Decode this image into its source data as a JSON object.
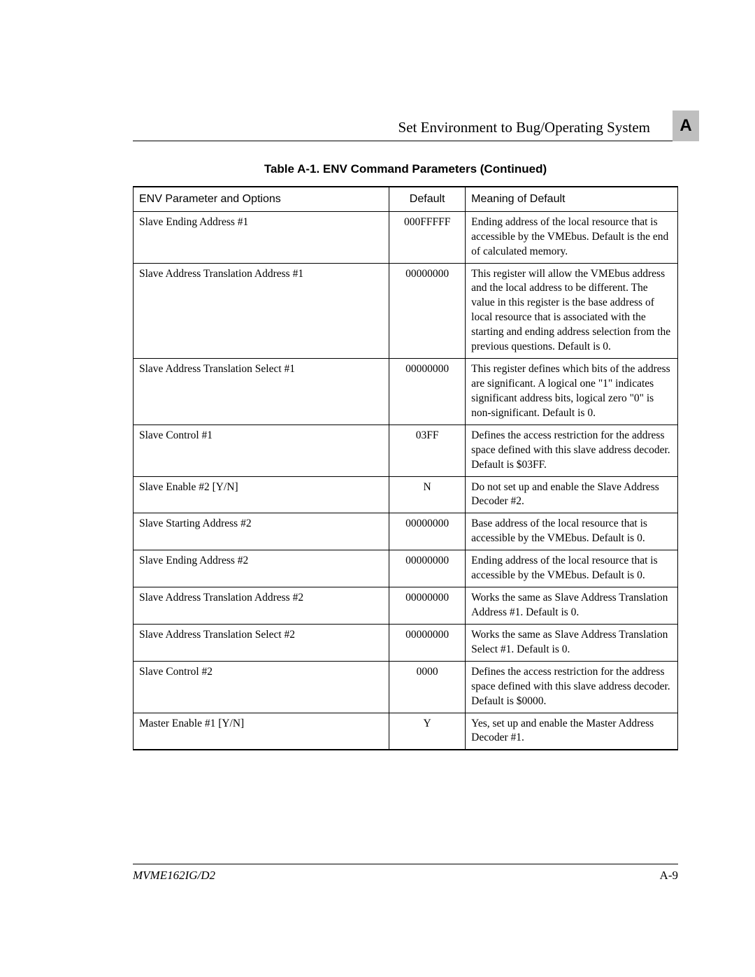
{
  "header": {
    "section_title": "Set Environment to Bug/Operating System",
    "appendix_letter": "A"
  },
  "table": {
    "caption": "Table A-1.  ENV Command Parameters (Continued)",
    "columns": {
      "param": "ENV Parameter and Options",
      "default": "Default",
      "meaning": "Meaning of Default"
    },
    "rows": [
      {
        "param": "Slave Ending Address #1",
        "default": "000FFFFF",
        "meaning": "Ending address of the local resource that is accessible by the VMEbus. Default is the end of calculated memory."
      },
      {
        "param": "Slave Address Translation Address #1",
        "default": "00000000",
        "meaning": "This register will allow the VMEbus address and the local address to be different. The value in this register is the base address of local resource that is associated with the starting and ending address selection from the previous questions. Default is 0."
      },
      {
        "param": "Slave Address Translation Select #1",
        "default": "00000000",
        "meaning": "This register defines which bits of the address are significant. A logical one \"1\" indicates significant address bits, logical zero \"0\" is non-significant. Default is 0."
      },
      {
        "param": "Slave Control #1",
        "default": "03FF",
        "meaning": "Defines the access restriction for the address space defined with this slave address decoder. Default is $03FF."
      },
      {
        "param": "Slave Enable #2 [Y/N]",
        "default": "N",
        "meaning": "Do not set up and enable the Slave Address Decoder #2."
      },
      {
        "param": "Slave Starting Address #2",
        "default": "00000000",
        "meaning": "Base address of the local resource that is accessible by the VMEbus. Default is 0."
      },
      {
        "param": "Slave Ending Address #2",
        "default": "00000000",
        "meaning": "Ending address of the local resource that is accessible by the VMEbus. Default is 0."
      },
      {
        "param": "Slave Address Translation Address #2",
        "default": "00000000",
        "meaning": "Works the same as Slave Address Translation Address #1. Default is 0."
      },
      {
        "param": "Slave Address Translation Select #2",
        "default": "00000000",
        "meaning": "Works the same as Slave Address Translation Select #1. Default is 0."
      },
      {
        "param": "Slave Control #2",
        "default": "0000",
        "meaning": "Defines the access restriction for the address space defined with this slave address decoder. Default is $0000."
      },
      {
        "param": "Master Enable #1 [Y/N]",
        "default": "Y",
        "meaning": "Yes, set up and enable the Master Address Decoder #1."
      }
    ]
  },
  "footer": {
    "doc_id": "MVME162IG/D2",
    "page_num": "A-9"
  }
}
